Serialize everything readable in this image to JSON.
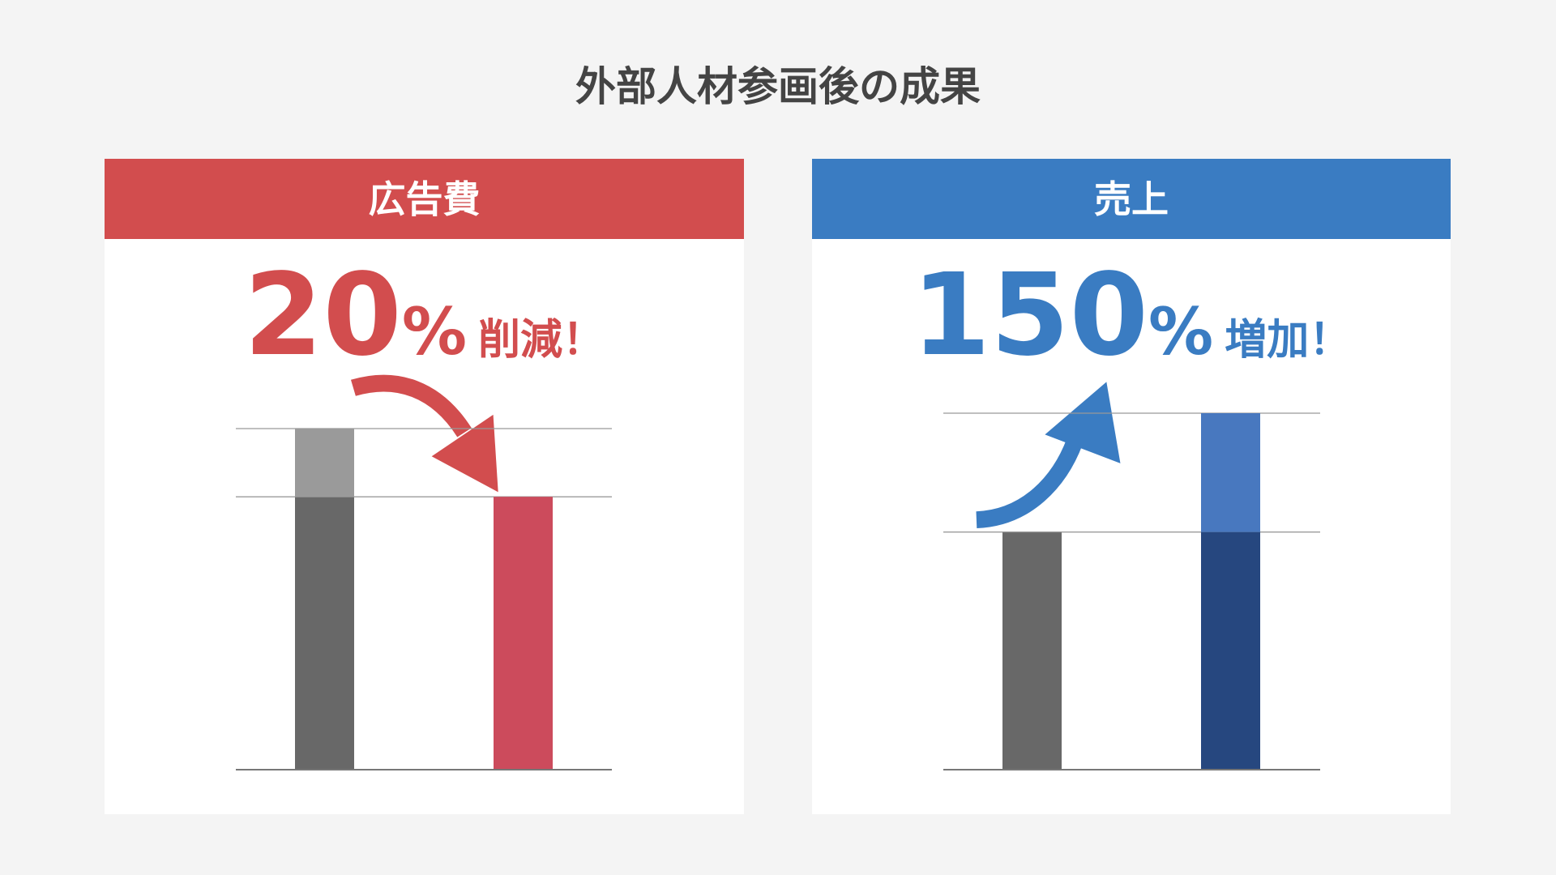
{
  "title": "外部人材参画後の成果",
  "chart_data": [
    {
      "type": "bar",
      "title": "広告費",
      "header_color": "#d24d4e",
      "accent_color": "#d24d4e",
      "headline_value": 20,
      "headline_unit": "%",
      "headline_text": "削減！",
      "categories": [
        null,
        null
      ],
      "series": [
        {
          "color": "#686868",
          "values": [
            80,
            null
          ]
        },
        {
          "color": "#9a9a9a",
          "values": [
            20,
            null
          ]
        },
        {
          "color": "#cc4b5c",
          "values": [
            null,
            80
          ]
        }
      ],
      "ylim": [
        0,
        100
      ]
    },
    {
      "type": "bar",
      "title": "売上",
      "header_color": "#3a7cc2",
      "accent_color": "#3a7cc2",
      "headline_value": 150,
      "headline_unit": "%",
      "headline_text": "増加！",
      "categories": [
        null,
        null
      ],
      "series": [
        {
          "color": "#686868",
          "values": [
            100,
            null
          ]
        },
        {
          "color": "#26477f",
          "values": [
            null,
            100
          ]
        },
        {
          "color": "#4878bf",
          "values": [
            null,
            50
          ]
        }
      ],
      "ylim": [
        0,
        150
      ]
    }
  ]
}
